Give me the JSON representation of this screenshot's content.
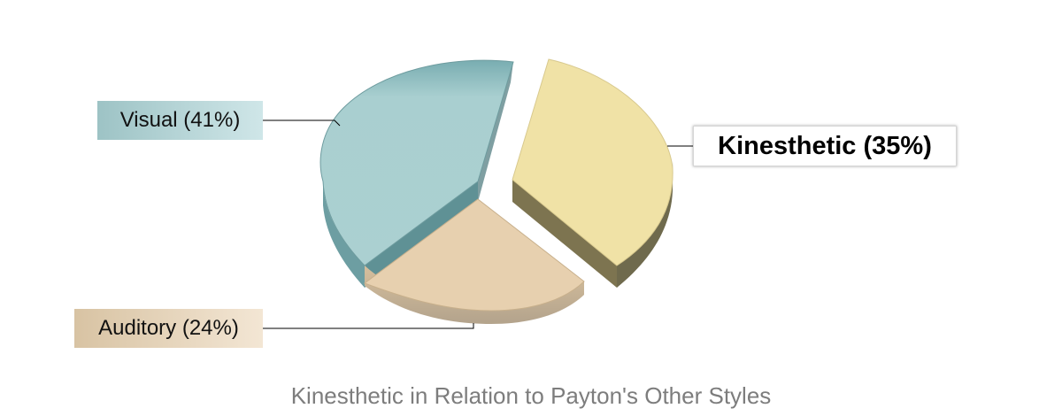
{
  "chart_data": {
    "type": "pie",
    "title": "Kinesthetic in Relation to Payton's Other Styles",
    "slices": [
      {
        "name": "Kinesthetic",
        "value": 35,
        "label": "Kinesthetic (35%)",
        "color": "#f0e2a6",
        "highlighted": true
      },
      {
        "name": "Auditory",
        "value": 24,
        "label": "Auditory (24%)",
        "color": "#e7d0af"
      },
      {
        "name": "Visual",
        "value": 41,
        "label": "Visual (41%)",
        "color": "#a9cfd0"
      }
    ],
    "legend": "none",
    "style": "3d-exploded"
  }
}
